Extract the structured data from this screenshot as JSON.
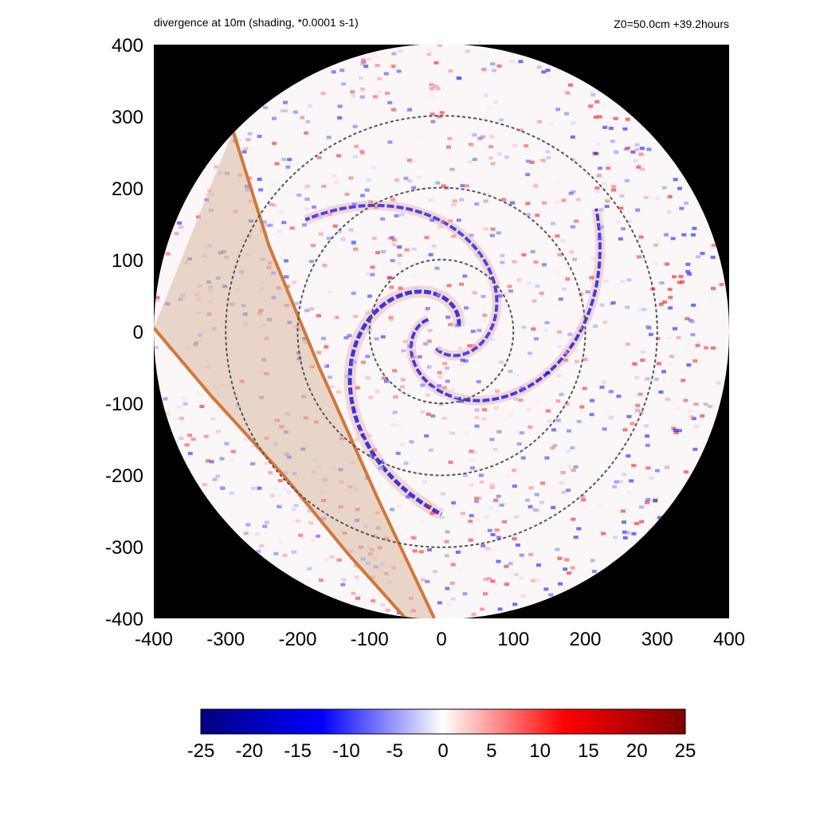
{
  "header": {
    "title": "divergence at 10m (shading, *0.0001 s-1)",
    "subtitle": "Z0=50.0cm  +39.2hours"
  },
  "chart_data": {
    "type": "heatmap",
    "title": "divergence at 10m (shading, *0.0001 s-1)",
    "subtitle": "Z0=50.0cm  +39.2hours",
    "xlabel": "",
    "ylabel": "",
    "xlim": [
      -400,
      400
    ],
    "ylim": [
      -400,
      400
    ],
    "x_ticks": [
      "-400",
      "-300",
      "-200",
      "-100",
      "0",
      "100",
      "200",
      "300",
      "400"
    ],
    "y_ticks": [
      "400",
      "300",
      "200",
      "100",
      "0",
      "-100",
      "-200",
      "-300",
      "-400"
    ],
    "colorbar": {
      "range": [
        -25,
        25
      ],
      "ticks": [
        "-25",
        "-20",
        "-15",
        "-10",
        "-5",
        "0",
        "5",
        "10",
        "15",
        "20",
        "25"
      ],
      "colors": [
        "#00007f",
        "#0000ff",
        "#ffffff",
        "#ff0000",
        "#7f0000"
      ]
    },
    "domain_radius": 400,
    "outside_domain_color": "#000000",
    "reference_circles_radius": [
      100,
      200,
      300
    ],
    "orange_lines": [
      [
        [
          -290,
          280
        ],
        [
          -240,
          120
        ],
        [
          -170,
          -50
        ],
        [
          -90,
          -230
        ],
        [
          -10,
          -400
        ]
      ],
      [
        [
          -400,
          5
        ],
        [
          -320,
          -90
        ],
        [
          -220,
          -200
        ],
        [
          -130,
          -310
        ],
        [
          -50,
          -400
        ]
      ]
    ],
    "shaded_band_color": "#d9b9a0",
    "line_color": "#d2773a"
  }
}
